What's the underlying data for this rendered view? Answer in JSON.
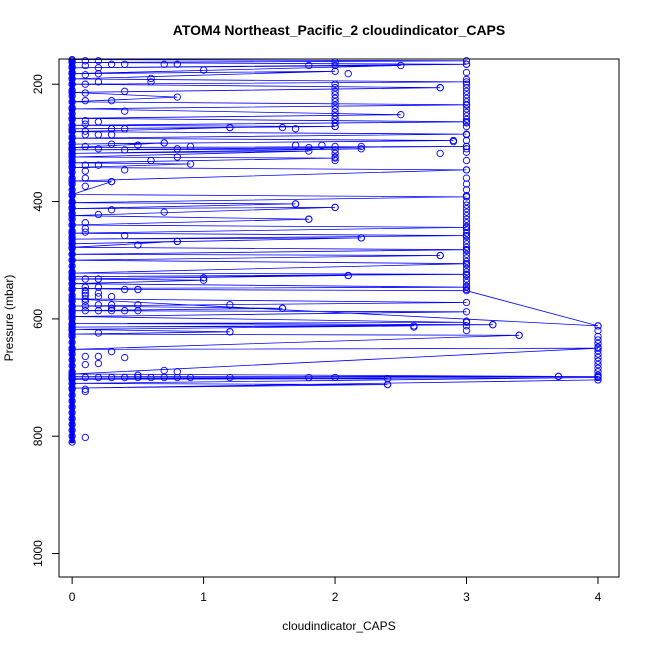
{
  "chart_data": {
    "type": "scatter",
    "title": "ATOM4 Northeast_Pacific_2 cloudindicator_CAPS",
    "xlabel": "cloudindicator_CAPS",
    "ylabel": "Pressure (mbar)",
    "xlim": [
      -0.1,
      4.16
    ],
    "ylim": [
      1040,
      157
    ],
    "y_reversed": true,
    "x_ticks": [
      0,
      1,
      2,
      3,
      4
    ],
    "y_ticks": [
      200,
      400,
      600,
      800,
      1000
    ],
    "grid": false,
    "legend": "none",
    "color": "#0000ff",
    "series": [
      {
        "style": "lines-and-points",
        "points": [
          [
            0,
            158
          ],
          [
            3,
            160
          ],
          [
            0,
            163
          ],
          [
            3,
            166
          ],
          [
            0,
            172
          ],
          [
            2.5,
            168
          ],
          [
            0,
            182
          ],
          [
            2,
            178
          ],
          [
            0,
            191
          ],
          [
            3,
            196
          ],
          [
            0,
            200
          ],
          [
            2.8,
            206
          ],
          [
            0,
            214
          ],
          [
            0.8,
            222
          ],
          [
            0,
            230
          ],
          [
            3,
            235
          ],
          [
            0,
            242
          ],
          [
            2.5,
            252
          ],
          [
            0,
            258
          ],
          [
            3,
            264
          ],
          [
            0,
            270
          ],
          [
            2,
            272
          ],
          [
            0,
            276
          ],
          [
            1.2,
            274
          ],
          [
            0,
            281
          ],
          [
            3,
            285
          ],
          [
            0,
            292
          ],
          [
            2.9,
            296
          ],
          [
            0,
            302
          ],
          [
            0.7,
            300
          ],
          [
            0,
            308
          ],
          [
            3,
            306
          ],
          [
            0,
            312
          ],
          [
            2.2,
            310
          ],
          [
            0,
            318
          ],
          [
            1.8,
            314
          ],
          [
            0,
            324
          ],
          [
            2,
            326
          ],
          [
            0,
            334
          ],
          [
            0.9,
            336
          ],
          [
            0,
            342
          ],
          [
            3,
            346
          ],
          [
            0,
            365
          ],
          [
            0.3,
            366
          ],
          [
            0,
            388
          ],
          [
            3,
            392
          ],
          [
            0,
            402
          ],
          [
            1.7,
            404
          ],
          [
            0,
            412
          ],
          [
            2,
            410
          ],
          [
            0,
            424
          ],
          [
            1.8,
            430
          ],
          [
            0,
            440
          ],
          [
            3,
            444
          ],
          [
            0,
            454
          ],
          [
            3,
            458
          ],
          [
            0,
            464
          ],
          [
            2.2,
            462
          ],
          [
            0,
            472
          ],
          [
            0.8,
            468
          ],
          [
            0,
            478
          ],
          [
            3,
            482
          ],
          [
            0,
            490
          ],
          [
            2.8,
            492
          ],
          [
            0,
            500
          ],
          [
            3,
            506
          ],
          [
            0,
            522
          ],
          [
            3,
            524
          ],
          [
            0,
            528
          ],
          [
            2.1,
            526
          ],
          [
            0,
            532
          ],
          [
            1,
            534
          ],
          [
            0,
            540
          ],
          [
            3,
            546
          ],
          [
            0,
            548
          ],
          [
            0.5,
            550
          ],
          [
            3,
            552
          ],
          [
            4,
            612
          ],
          [
            0,
            566
          ],
          [
            3,
            572
          ],
          [
            0,
            578
          ],
          [
            1.6,
            582
          ],
          [
            0,
            586
          ],
          [
            3,
            588
          ],
          [
            0,
            596
          ],
          [
            3,
            606
          ],
          [
            0,
            608
          ],
          [
            3.2,
            610
          ],
          [
            0,
            614
          ],
          [
            2.6,
            612
          ],
          [
            0,
            618
          ],
          [
            1.2,
            622
          ],
          [
            0,
            626
          ],
          [
            3.4,
            628
          ],
          [
            0,
            652
          ],
          [
            4,
            650
          ],
          [
            0,
            694
          ],
          [
            3.7,
            698
          ],
          [
            0,
            698
          ],
          [
            4,
            698
          ],
          [
            0,
            701
          ],
          [
            2.4,
            702
          ],
          [
            0,
            703
          ],
          [
            4,
            700
          ],
          [
            0,
            710
          ],
          [
            2.4,
            712
          ],
          [
            0,
            718
          ],
          [
            4,
            704
          ]
        ]
      }
    ],
    "extra_points": [
      [
        0,
        160
      ],
      [
        0,
        170
      ],
      [
        0,
        180
      ],
      [
        0,
        190
      ],
      [
        0,
        200
      ],
      [
        0,
        210
      ],
      [
        0,
        220
      ],
      [
        0,
        230
      ],
      [
        0,
        240
      ],
      [
        0,
        250
      ],
      [
        0,
        260
      ],
      [
        0,
        270
      ],
      [
        0,
        280
      ],
      [
        0,
        290
      ],
      [
        0,
        300
      ],
      [
        0,
        310
      ],
      [
        0,
        320
      ],
      [
        0,
        330
      ],
      [
        0,
        340
      ],
      [
        0,
        350
      ],
      [
        0,
        360
      ],
      [
        0,
        370
      ],
      [
        0,
        380
      ],
      [
        0,
        390
      ],
      [
        0,
        400
      ],
      [
        0,
        410
      ],
      [
        0,
        420
      ],
      [
        0,
        430
      ],
      [
        0,
        440
      ],
      [
        0,
        450
      ],
      [
        0,
        460
      ],
      [
        0,
        470
      ],
      [
        0,
        480
      ],
      [
        0,
        490
      ],
      [
        0,
        500
      ],
      [
        0,
        510
      ],
      [
        0,
        520
      ],
      [
        0,
        530
      ],
      [
        0,
        540
      ],
      [
        0,
        550
      ],
      [
        0,
        560
      ],
      [
        0,
        570
      ],
      [
        0,
        580
      ],
      [
        0,
        590
      ],
      [
        0,
        600
      ],
      [
        0,
        610
      ],
      [
        0,
        620
      ],
      [
        0,
        630
      ],
      [
        0,
        640
      ],
      [
        0,
        650
      ],
      [
        0,
        660
      ],
      [
        0,
        670
      ],
      [
        0,
        680
      ],
      [
        0,
        690
      ],
      [
        0,
        700
      ],
      [
        0,
        710
      ],
      [
        0,
        720
      ],
      [
        0,
        730
      ],
      [
        0,
        740
      ],
      [
        0,
        750
      ],
      [
        0,
        760
      ],
      [
        0,
        770
      ],
      [
        0,
        780
      ],
      [
        0,
        790
      ],
      [
        0,
        800
      ],
      [
        0,
        810
      ],
      [
        0.1,
        160
      ],
      [
        0.1,
        168
      ],
      [
        0.1,
        184
      ],
      [
        0.1,
        200
      ],
      [
        0.1,
        215
      ],
      [
        0.1,
        228
      ],
      [
        0.1,
        262
      ],
      [
        0.1,
        268
      ],
      [
        0.1,
        280
      ],
      [
        0.1,
        286
      ],
      [
        0.1,
        306
      ],
      [
        0.1,
        338
      ],
      [
        0.1,
        348
      ],
      [
        0.1,
        360
      ],
      [
        0.1,
        374
      ],
      [
        0.1,
        436
      ],
      [
        0.1,
        446
      ],
      [
        0.1,
        452
      ],
      [
        0.1,
        532
      ],
      [
        0.1,
        546
      ],
      [
        0.1,
        552
      ],
      [
        0.1,
        556
      ],
      [
        0.1,
        560
      ],
      [
        0.1,
        566
      ],
      [
        0.1,
        570
      ],
      [
        0.1,
        578
      ],
      [
        0.1,
        586
      ],
      [
        0.1,
        664
      ],
      [
        0.1,
        678
      ],
      [
        0.1,
        700
      ],
      [
        0.1,
        720
      ],
      [
        0.1,
        724
      ],
      [
        0.1,
        802
      ],
      [
        0.2,
        160
      ],
      [
        0.2,
        172
      ],
      [
        0.2,
        182
      ],
      [
        0.2,
        196
      ],
      [
        0.2,
        264
      ],
      [
        0.2,
        286
      ],
      [
        0.2,
        310
      ],
      [
        0.2,
        338
      ],
      [
        0.2,
        422
      ],
      [
        0.2,
        532
      ],
      [
        0.2,
        546
      ],
      [
        0.2,
        556
      ],
      [
        0.2,
        562
      ],
      [
        0.2,
        576
      ],
      [
        0.2,
        586
      ],
      [
        0.2,
        624
      ],
      [
        0.2,
        664
      ],
      [
        0.2,
        676
      ],
      [
        0.2,
        700
      ],
      [
        0.3,
        166
      ],
      [
        0.3,
        228
      ],
      [
        0.3,
        276
      ],
      [
        0.3,
        286
      ],
      [
        0.3,
        302
      ],
      [
        0.3,
        366
      ],
      [
        0.3,
        414
      ],
      [
        0.3,
        562
      ],
      [
        0.3,
        576
      ],
      [
        0.3,
        582
      ],
      [
        0.3,
        586
      ],
      [
        0.3,
        656
      ],
      [
        0.3,
        700
      ],
      [
        0.4,
        166
      ],
      [
        0.4,
        212
      ],
      [
        0.4,
        246
      ],
      [
        0.4,
        276
      ],
      [
        0.4,
        312
      ],
      [
        0.4,
        346
      ],
      [
        0.4,
        458
      ],
      [
        0.4,
        550
      ],
      [
        0.4,
        586
      ],
      [
        0.4,
        666
      ],
      [
        0.4,
        700
      ],
      [
        0.5,
        304
      ],
      [
        0.5,
        474
      ],
      [
        0.5,
        550
      ],
      [
        0.5,
        576
      ],
      [
        0.5,
        586
      ],
      [
        0.5,
        696
      ],
      [
        0.5,
        700
      ],
      [
        0.6,
        190
      ],
      [
        0.6,
        196
      ],
      [
        0.6,
        330
      ],
      [
        0.6,
        700
      ],
      [
        0.7,
        166
      ],
      [
        0.7,
        300
      ],
      [
        0.7,
        418
      ],
      [
        0.7,
        688
      ],
      [
        0.7,
        700
      ],
      [
        0.8,
        166
      ],
      [
        0.8,
        310
      ],
      [
        0.8,
        324
      ],
      [
        0.8,
        468
      ],
      [
        0.8,
        690
      ],
      [
        0.8,
        700
      ],
      [
        0.9,
        306
      ],
      [
        0.9,
        700
      ],
      [
        1.0,
        176
      ],
      [
        1.0,
        530
      ],
      [
        1.2,
        274
      ],
      [
        1.2,
        576
      ],
      [
        1.2,
        622
      ],
      [
        1.2,
        700
      ],
      [
        1.6,
        274
      ],
      [
        1.6,
        582
      ],
      [
        1.7,
        276
      ],
      [
        1.7,
        304
      ],
      [
        1.7,
        404
      ],
      [
        1.8,
        168
      ],
      [
        1.8,
        308
      ],
      [
        1.8,
        430
      ],
      [
        1.8,
        700
      ],
      [
        1.9,
        304
      ],
      [
        2.0,
        162
      ],
      [
        2.0,
        168
      ],
      [
        2.0,
        200
      ],
      [
        2.0,
        206
      ],
      [
        2.0,
        212
      ],
      [
        2.0,
        218
      ],
      [
        2.0,
        224
      ],
      [
        2.0,
        230
      ],
      [
        2.0,
        236
      ],
      [
        2.0,
        242
      ],
      [
        2.0,
        248
      ],
      [
        2.0,
        254
      ],
      [
        2.0,
        260
      ],
      [
        2.0,
        266
      ],
      [
        2.0,
        272
      ],
      [
        2.0,
        306
      ],
      [
        2.0,
        312
      ],
      [
        2.0,
        318
      ],
      [
        2.0,
        324
      ],
      [
        2.0,
        330
      ],
      [
        2.0,
        410
      ],
      [
        2.0,
        700
      ],
      [
        2.1,
        526
      ],
      [
        2.1,
        182
      ],
      [
        2.2,
        306
      ],
      [
        2.2,
        462
      ],
      [
        2.4,
        712
      ],
      [
        2.6,
        614
      ],
      [
        2.8,
        206
      ],
      [
        2.8,
        318
      ],
      [
        2.8,
        492
      ],
      [
        2.9,
        298
      ],
      [
        3.0,
        166
      ],
      [
        3.0,
        180
      ],
      [
        3.0,
        192
      ],
      [
        3.0,
        200
      ],
      [
        3.0,
        206
      ],
      [
        3.0,
        212
      ],
      [
        3.0,
        218
      ],
      [
        3.0,
        224
      ],
      [
        3.0,
        230
      ],
      [
        3.0,
        236
      ],
      [
        3.0,
        242
      ],
      [
        3.0,
        248
      ],
      [
        3.0,
        254
      ],
      [
        3.0,
        260
      ],
      [
        3.0,
        266
      ],
      [
        3.0,
        272
      ],
      [
        3.0,
        286
      ],
      [
        3.0,
        296
      ],
      [
        3.0,
        306
      ],
      [
        3.0,
        310
      ],
      [
        3.0,
        316
      ],
      [
        3.0,
        330
      ],
      [
        3.0,
        346
      ],
      [
        3.0,
        360
      ],
      [
        3.0,
        370
      ],
      [
        3.0,
        380
      ],
      [
        3.0,
        390
      ],
      [
        3.0,
        400
      ],
      [
        3.0,
        406
      ],
      [
        3.0,
        412
      ],
      [
        3.0,
        418
      ],
      [
        3.0,
        424
      ],
      [
        3.0,
        430
      ],
      [
        3.0,
        436
      ],
      [
        3.0,
        442
      ],
      [
        3.0,
        448
      ],
      [
        3.0,
        454
      ],
      [
        3.0,
        460
      ],
      [
        3.0,
        466
      ],
      [
        3.0,
        472
      ],
      [
        3.0,
        478
      ],
      [
        3.0,
        484
      ],
      [
        3.0,
        490
      ],
      [
        3.0,
        496
      ],
      [
        3.0,
        502
      ],
      [
        3.0,
        508
      ],
      [
        3.0,
        514
      ],
      [
        3.0,
        520
      ],
      [
        3.0,
        526
      ],
      [
        3.0,
        532
      ],
      [
        3.0,
        538
      ],
      [
        3.0,
        544
      ],
      [
        3.0,
        550
      ],
      [
        3.0,
        604
      ],
      [
        3.0,
        612
      ],
      [
        3.0,
        620
      ],
      [
        3.2,
        610
      ],
      [
        3.4,
        628
      ],
      [
        3.7,
        698
      ],
      [
        4.0,
        612
      ],
      [
        4.0,
        620
      ],
      [
        4.0,
        630
      ],
      [
        4.0,
        636
      ],
      [
        4.0,
        642
      ],
      [
        4.0,
        648
      ],
      [
        4.0,
        654
      ],
      [
        4.0,
        660
      ],
      [
        4.0,
        666
      ],
      [
        4.0,
        672
      ],
      [
        4.0,
        678
      ],
      [
        4.0,
        684
      ],
      [
        4.0,
        690
      ],
      [
        4.0,
        696
      ],
      [
        4.0,
        700
      ],
      [
        4.0,
        704
      ]
    ]
  }
}
